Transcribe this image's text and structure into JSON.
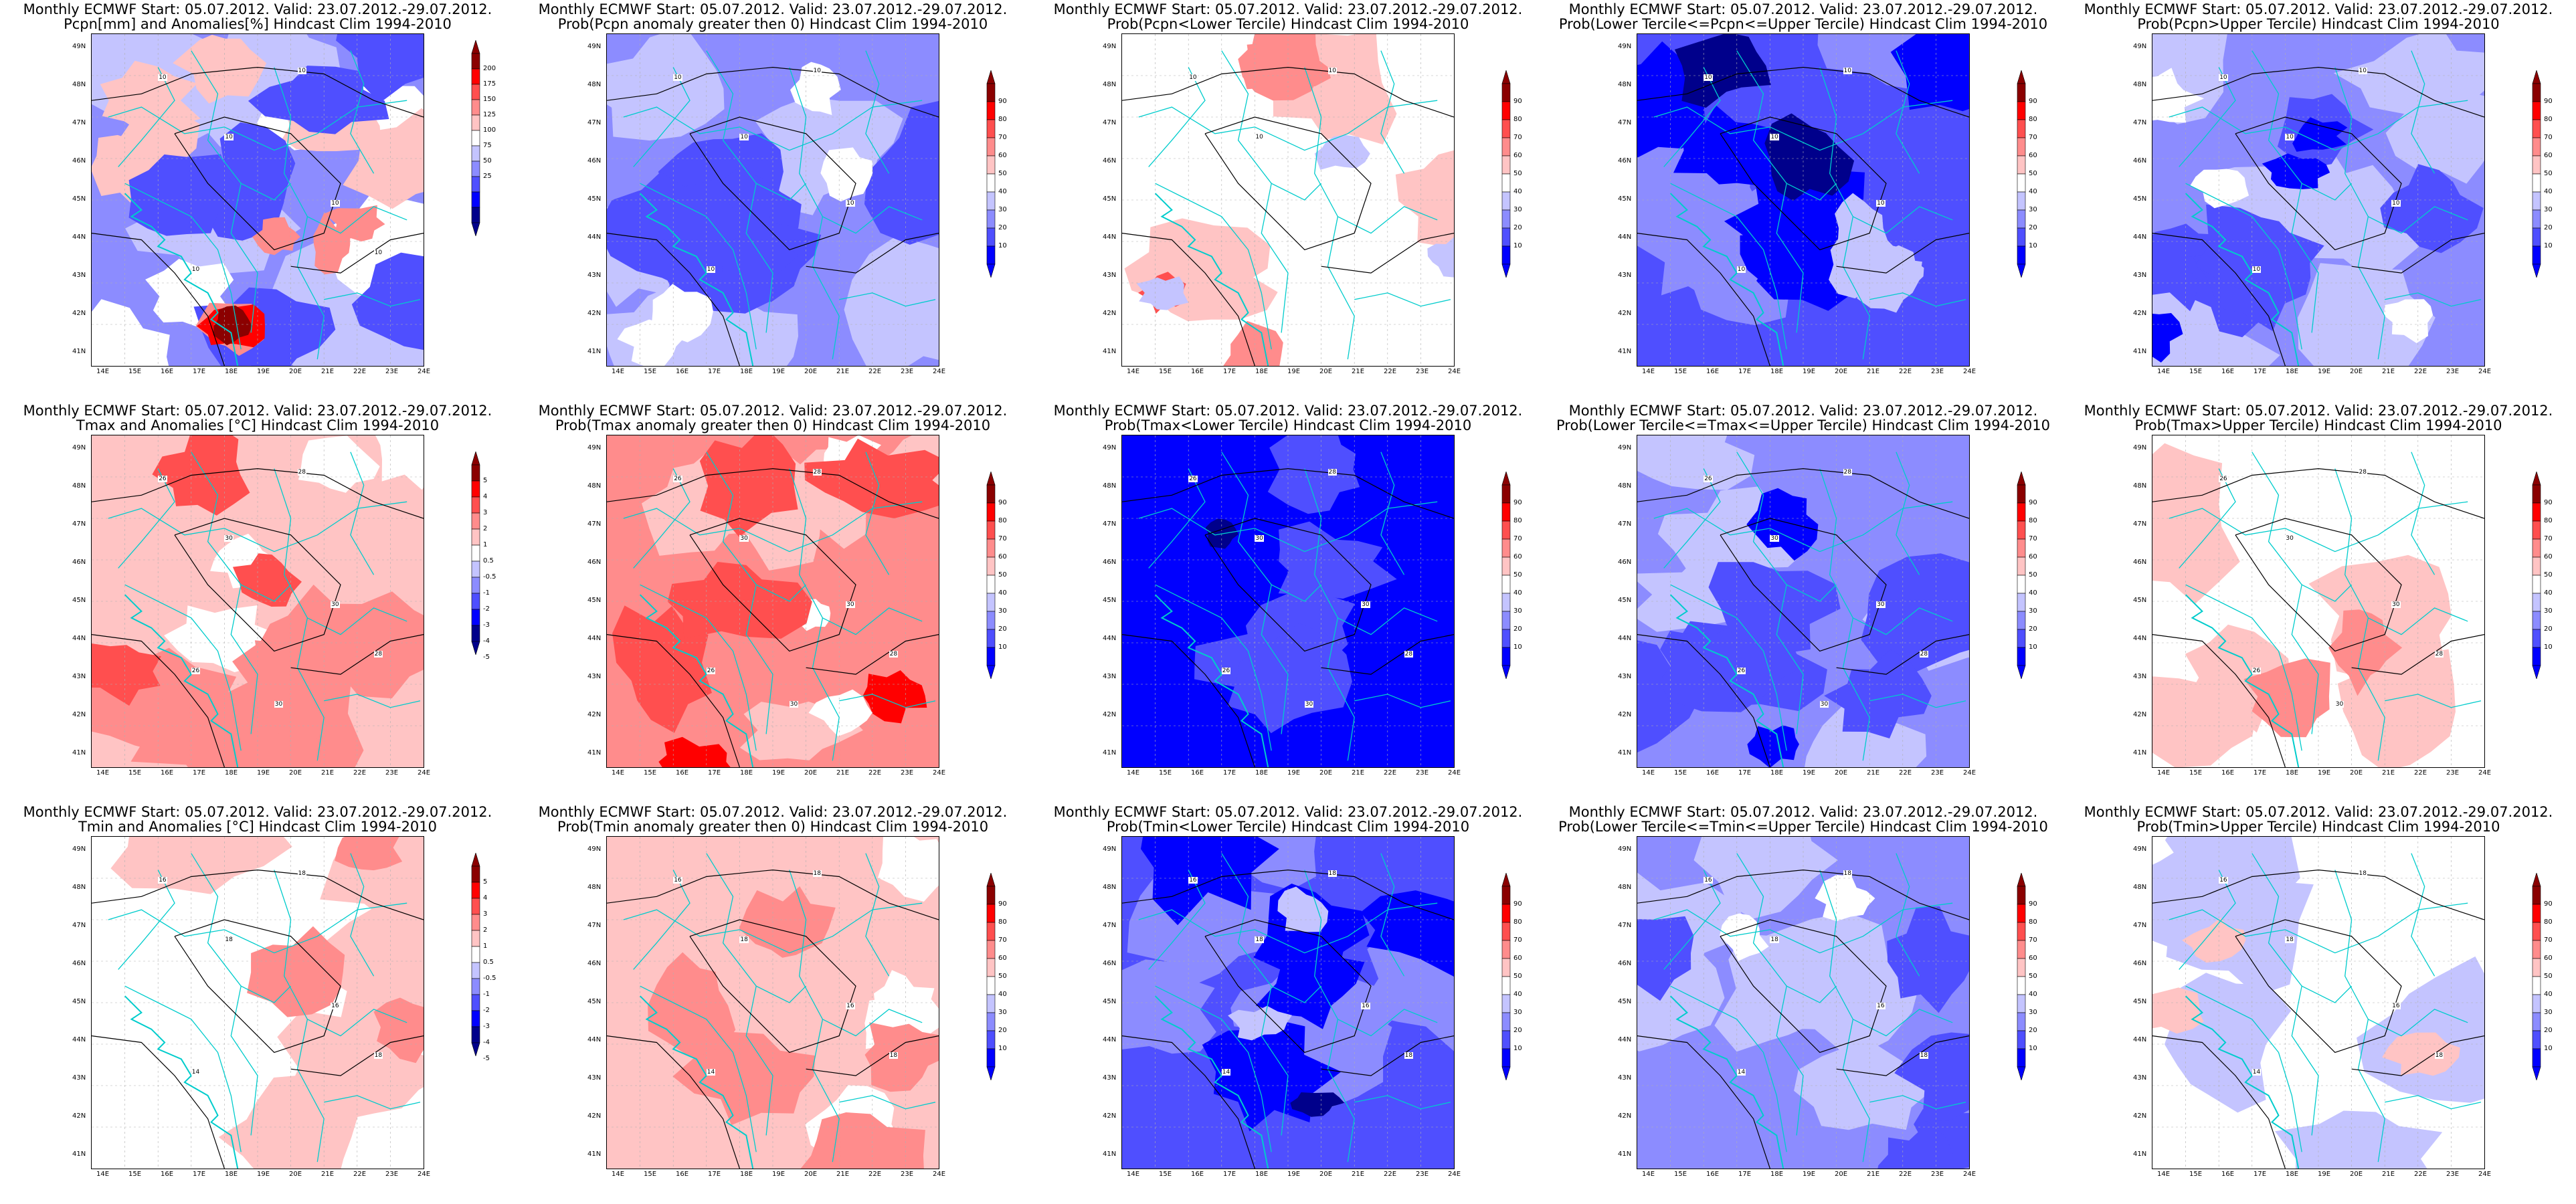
{
  "maps": [
    {
      "id": "pcpn-anom",
      "title1": "Monthly ECMWF Start: 05.07.2012. Valid: 23.07.2012.-29.07.2012.",
      "title2": "Pcpn[mm] and Anomalies[%] Hindcast Clim 1994-2010",
      "scale": "anom",
      "colorbar": [
        "200",
        "175",
        "150",
        "125",
        "100",
        "75",
        "50",
        "25"
      ],
      "contour_labels": [
        "10",
        "10",
        "10",
        "10",
        "10",
        "10"
      ],
      "x_ticks": [
        "14E",
        "15E",
        "16E",
        "17E",
        "18E",
        "19E",
        "20E",
        "21E",
        "22E",
        "23E",
        "24E"
      ],
      "y_ticks": [
        "49N",
        "48N",
        "47N",
        "46N",
        "45N",
        "44N",
        "43N",
        "42N",
        "41N"
      ]
    },
    {
      "id": "pcpn-prob-gt0",
      "title1": "Monthly ECMWF Start: 05.07.2012. Valid: 23.07.2012.-29.07.2012.",
      "title2": "Prob(Pcpn anomaly greater then 0) Hindcast Clim 1994-2010",
      "scale": "prob",
      "colorbar": [
        "90",
        "80",
        "70",
        "60",
        "50",
        "40",
        "30",
        "20",
        "10"
      ],
      "contour_labels": [
        "10",
        "10",
        "10",
        "10",
        "10"
      ],
      "x_ticks": [
        "14E",
        "15E",
        "16E",
        "17E",
        "18E",
        "19E",
        "20E",
        "21E",
        "22E",
        "23E",
        "24E"
      ],
      "y_ticks": [
        "49N",
        "48N",
        "47N",
        "46N",
        "45N",
        "44N",
        "43N",
        "42N",
        "41N"
      ]
    },
    {
      "id": "pcpn-prob-lower",
      "title1": "Monthly ECMWF Start: 05.07.2012. Valid: 23.07.2012.-29.07.2012.",
      "title2": "Prob(Pcpn<Lower Tercile) Hindcast Clim 1994-2010",
      "scale": "prob",
      "colorbar": [
        "90",
        "80",
        "70",
        "60",
        "50",
        "40",
        "30",
        "20",
        "10"
      ],
      "contour_labels": [
        "10",
        "10",
        "10"
      ],
      "x_ticks": [
        "14E",
        "15E",
        "16E",
        "17E",
        "18E",
        "19E",
        "20E",
        "21E",
        "22E",
        "23E",
        "24E"
      ],
      "y_ticks": [
        "49N",
        "48N",
        "47N",
        "46N",
        "45N",
        "44N",
        "43N",
        "42N",
        "41N"
      ]
    },
    {
      "id": "pcpn-prob-middle",
      "title1": "Monthly ECMWF Start: 05.07.2012. Valid: 23.07.2012.-29.07.2012.",
      "title2": "Prob(Lower Tercile<=Pcpn<=Upper Tercile) Hindcast Clim 1994-2010",
      "scale": "prob",
      "colorbar": [
        "90",
        "80",
        "70",
        "60",
        "50",
        "40",
        "30",
        "20",
        "10"
      ],
      "contour_labels": [
        "10",
        "10",
        "10",
        "10",
        "10"
      ],
      "x_ticks": [
        "14E",
        "15E",
        "16E",
        "17E",
        "18E",
        "19E",
        "20E",
        "21E",
        "22E",
        "23E",
        "24E"
      ],
      "y_ticks": [
        "49N",
        "48N",
        "47N",
        "46N",
        "45N",
        "44N",
        "43N",
        "42N",
        "41N"
      ]
    },
    {
      "id": "pcpn-prob-upper",
      "title1": "Monthly ECMWF Start: 05.07.2012. Valid: 23.07.2012.-29.07.2012.",
      "title2": "Prob(Pcpn>Upper Tercile) Hindcast Clim 1994-2010",
      "scale": "prob",
      "colorbar": [
        "90",
        "80",
        "70",
        "60",
        "50",
        "40",
        "30",
        "20",
        "10"
      ],
      "contour_labels": [
        "10",
        "10",
        "10",
        "10",
        "10"
      ],
      "x_ticks": [
        "14E",
        "15E",
        "16E",
        "17E",
        "18E",
        "19E",
        "20E",
        "21E",
        "22E",
        "23E",
        "24E"
      ],
      "y_ticks": [
        "49N",
        "48N",
        "47N",
        "46N",
        "45N",
        "44N",
        "43N",
        "42N",
        "41N"
      ]
    },
    {
      "id": "tmax-anom",
      "title1": "Monthly ECMWF Start: 05.07.2012. Valid: 23.07.2012.-29.07.2012.",
      "title2": "Tmax and Anomalies [°C] Hindcast Clim 1994-2010",
      "scale": "temp",
      "colorbar": [
        "5",
        "4",
        "3",
        "2",
        "1",
        "0.5",
        "-0.5",
        "-1",
        "-2",
        "-3",
        "-4",
        "-5"
      ],
      "contour_labels": [
        "26",
        "28",
        "30",
        "30",
        "26",
        "28",
        "30"
      ],
      "x_ticks": [
        "14E",
        "15E",
        "16E",
        "17E",
        "18E",
        "19E",
        "20E",
        "21E",
        "22E",
        "23E",
        "24E"
      ],
      "y_ticks": [
        "49N",
        "48N",
        "47N",
        "46N",
        "45N",
        "44N",
        "43N",
        "42N",
        "41N"
      ]
    },
    {
      "id": "tmax-prob-gt0",
      "title1": "Monthly ECMWF Start: 05.07.2012. Valid: 23.07.2012.-29.07.2012.",
      "title2": "Prob(Tmax anomaly greater then 0) Hindcast Clim 1994-2010",
      "scale": "prob",
      "colorbar": [
        "90",
        "80",
        "70",
        "60",
        "50",
        "40",
        "30",
        "20",
        "10"
      ],
      "contour_labels": [
        "26",
        "28",
        "30",
        "30",
        "26",
        "28",
        "30"
      ],
      "x_ticks": [
        "14E",
        "15E",
        "16E",
        "17E",
        "18E",
        "19E",
        "20E",
        "21E",
        "22E",
        "23E",
        "24E"
      ],
      "y_ticks": [
        "49N",
        "48N",
        "47N",
        "46N",
        "45N",
        "44N",
        "43N",
        "42N",
        "41N"
      ]
    },
    {
      "id": "tmax-prob-lower",
      "title1": "Monthly ECMWF Start: 05.07.2012. Valid: 23.07.2012.-29.07.2012.",
      "title2": "Prob(Tmax<Lower Tercile) Hindcast Clim 1994-2010",
      "scale": "prob",
      "colorbar": [
        "90",
        "80",
        "70",
        "60",
        "50",
        "40",
        "30",
        "20",
        "10"
      ],
      "contour_labels": [
        "26",
        "28",
        "30",
        "30",
        "26",
        "28",
        "30"
      ],
      "x_ticks": [
        "14E",
        "15E",
        "16E",
        "17E",
        "18E",
        "19E",
        "20E",
        "21E",
        "22E",
        "23E",
        "24E"
      ],
      "y_ticks": [
        "49N",
        "48N",
        "47N",
        "46N",
        "45N",
        "44N",
        "43N",
        "42N",
        "41N"
      ]
    },
    {
      "id": "tmax-prob-middle",
      "title1": "Monthly ECMWF Start: 05.07.2012. Valid: 23.07.2012.-29.07.2012.",
      "title2": "Prob(Lower Tercile<=Tmax<=Upper Tercile) Hindcast Clim 1994-2010",
      "scale": "prob",
      "colorbar": [
        "90",
        "80",
        "70",
        "60",
        "50",
        "40",
        "30",
        "20",
        "10"
      ],
      "contour_labels": [
        "26",
        "28",
        "30",
        "30",
        "26",
        "28",
        "30"
      ],
      "x_ticks": [
        "14E",
        "15E",
        "16E",
        "17E",
        "18E",
        "19E",
        "20E",
        "21E",
        "22E",
        "23E",
        "24E"
      ],
      "y_ticks": [
        "49N",
        "48N",
        "47N",
        "46N",
        "45N",
        "44N",
        "43N",
        "42N",
        "41N"
      ]
    },
    {
      "id": "tmax-prob-upper",
      "title1": "Monthly ECMWF Start: 05.07.2012. Valid: 23.07.2012.-29.07.2012.",
      "title2": "Prob(Tmax>Upper Tercile) Hindcast Clim 1994-2010",
      "scale": "prob",
      "colorbar": [
        "90",
        "80",
        "70",
        "60",
        "50",
        "40",
        "30",
        "20",
        "10"
      ],
      "contour_labels": [
        "26",
        "28",
        "30",
        "30",
        "26",
        "28",
        "30"
      ],
      "x_ticks": [
        "14E",
        "15E",
        "16E",
        "17E",
        "18E",
        "19E",
        "20E",
        "21E",
        "22E",
        "23E",
        "24E"
      ],
      "y_ticks": [
        "49N",
        "48N",
        "47N",
        "46N",
        "45N",
        "44N",
        "43N",
        "42N",
        "41N"
      ]
    },
    {
      "id": "tmin-anom",
      "title1": "Monthly ECMWF Start: 05.07.2012. Valid: 23.07.2012.-29.07.2012.",
      "title2": "Tmin and Anomalies [°C] Hindcast Clim 1994-2010",
      "scale": "temp",
      "colorbar": [
        "5",
        "4",
        "3",
        "2",
        "1",
        "0.5",
        "-0.5",
        "-1",
        "-2",
        "-3",
        "-4",
        "-5"
      ],
      "contour_labels": [
        "16",
        "18",
        "18",
        "16",
        "14",
        "18"
      ],
      "x_ticks": [
        "14E",
        "15E",
        "16E",
        "17E",
        "18E",
        "19E",
        "20E",
        "21E",
        "22E",
        "23E",
        "24E"
      ],
      "y_ticks": [
        "49N",
        "48N",
        "47N",
        "46N",
        "45N",
        "44N",
        "43N",
        "42N",
        "41N"
      ]
    },
    {
      "id": "tmin-prob-gt0",
      "title1": "Monthly ECMWF Start: 05.07.2012. Valid: 23.07.2012.-29.07.2012.",
      "title2": "Prob(Tmin anomaly greater then 0) Hindcast Clim 1994-2010",
      "scale": "prob",
      "colorbar": [
        "90",
        "80",
        "70",
        "60",
        "50",
        "40",
        "30",
        "20",
        "10"
      ],
      "contour_labels": [
        "16",
        "18",
        "18",
        "16",
        "14",
        "18"
      ],
      "x_ticks": [
        "14E",
        "15E",
        "16E",
        "17E",
        "18E",
        "19E",
        "20E",
        "21E",
        "22E",
        "23E",
        "24E"
      ],
      "y_ticks": [
        "49N",
        "48N",
        "47N",
        "46N",
        "45N",
        "44N",
        "43N",
        "42N",
        "41N"
      ]
    },
    {
      "id": "tmin-prob-lower",
      "title1": "Monthly ECMWF Start: 05.07.2012. Valid: 23.07.2012.-29.07.2012.",
      "title2": "Prob(Tmin<Lower Tercile) Hindcast Clim 1994-2010",
      "scale": "prob",
      "colorbar": [
        "90",
        "80",
        "70",
        "60",
        "50",
        "40",
        "30",
        "20",
        "10"
      ],
      "contour_labels": [
        "16",
        "18",
        "18",
        "16",
        "14",
        "18"
      ],
      "x_ticks": [
        "14E",
        "15E",
        "16E",
        "17E",
        "18E",
        "19E",
        "20E",
        "21E",
        "22E",
        "23E",
        "24E"
      ],
      "y_ticks": [
        "49N",
        "48N",
        "47N",
        "46N",
        "45N",
        "44N",
        "43N",
        "42N",
        "41N"
      ]
    },
    {
      "id": "tmin-prob-middle",
      "title1": "Monthly ECMWF Start: 05.07.2012. Valid: 23.07.2012.-29.07.2012.",
      "title2": "Prob(Lower Tercile<=Tmin<=Upper Tercile) Hindcast Clim 1994-2010",
      "scale": "prob",
      "colorbar": [
        "90",
        "80",
        "70",
        "60",
        "50",
        "40",
        "30",
        "20",
        "10"
      ],
      "contour_labels": [
        "16",
        "18",
        "18",
        "16",
        "14",
        "18"
      ],
      "x_ticks": [
        "14E",
        "15E",
        "16E",
        "17E",
        "18E",
        "19E",
        "20E",
        "21E",
        "22E",
        "23E",
        "24E"
      ],
      "y_ticks": [
        "49N",
        "48N",
        "47N",
        "46N",
        "45N",
        "44N",
        "43N",
        "42N",
        "41N"
      ]
    },
    {
      "id": "tmin-prob-upper",
      "title1": "Monthly ECMWF Start: 05.07.2012. Valid: 23.07.2012.-29.07.2012.",
      "title2": "Prob(Tmin>Upper Tercile) Hindcast Clim 1994-2010",
      "scale": "prob",
      "colorbar": [
        "90",
        "80",
        "70",
        "60",
        "50",
        "40",
        "30",
        "20",
        "10"
      ],
      "contour_labels": [
        "16",
        "18",
        "18",
        "16",
        "14",
        "18"
      ],
      "x_ticks": [
        "14E",
        "15E",
        "16E",
        "17E",
        "18E",
        "19E",
        "20E",
        "21E",
        "22E",
        "23E",
        "24E"
      ],
      "y_ticks": [
        "49N",
        "48N",
        "47N",
        "46N",
        "45N",
        "44N",
        "43N",
        "42N",
        "41N"
      ]
    }
  ],
  "colors": {
    "blues": [
      "#00008b",
      "#0000ff",
      "#4f4fff",
      "#8c8cff",
      "#c4c4ff"
    ],
    "reds": [
      "#ffc4c4",
      "#ff8c8c",
      "#ff4f4f",
      "#ff0000",
      "#8b0000"
    ],
    "neutral": "#ffffff",
    "border_line": "#00cccc",
    "contour": "#000000"
  }
}
